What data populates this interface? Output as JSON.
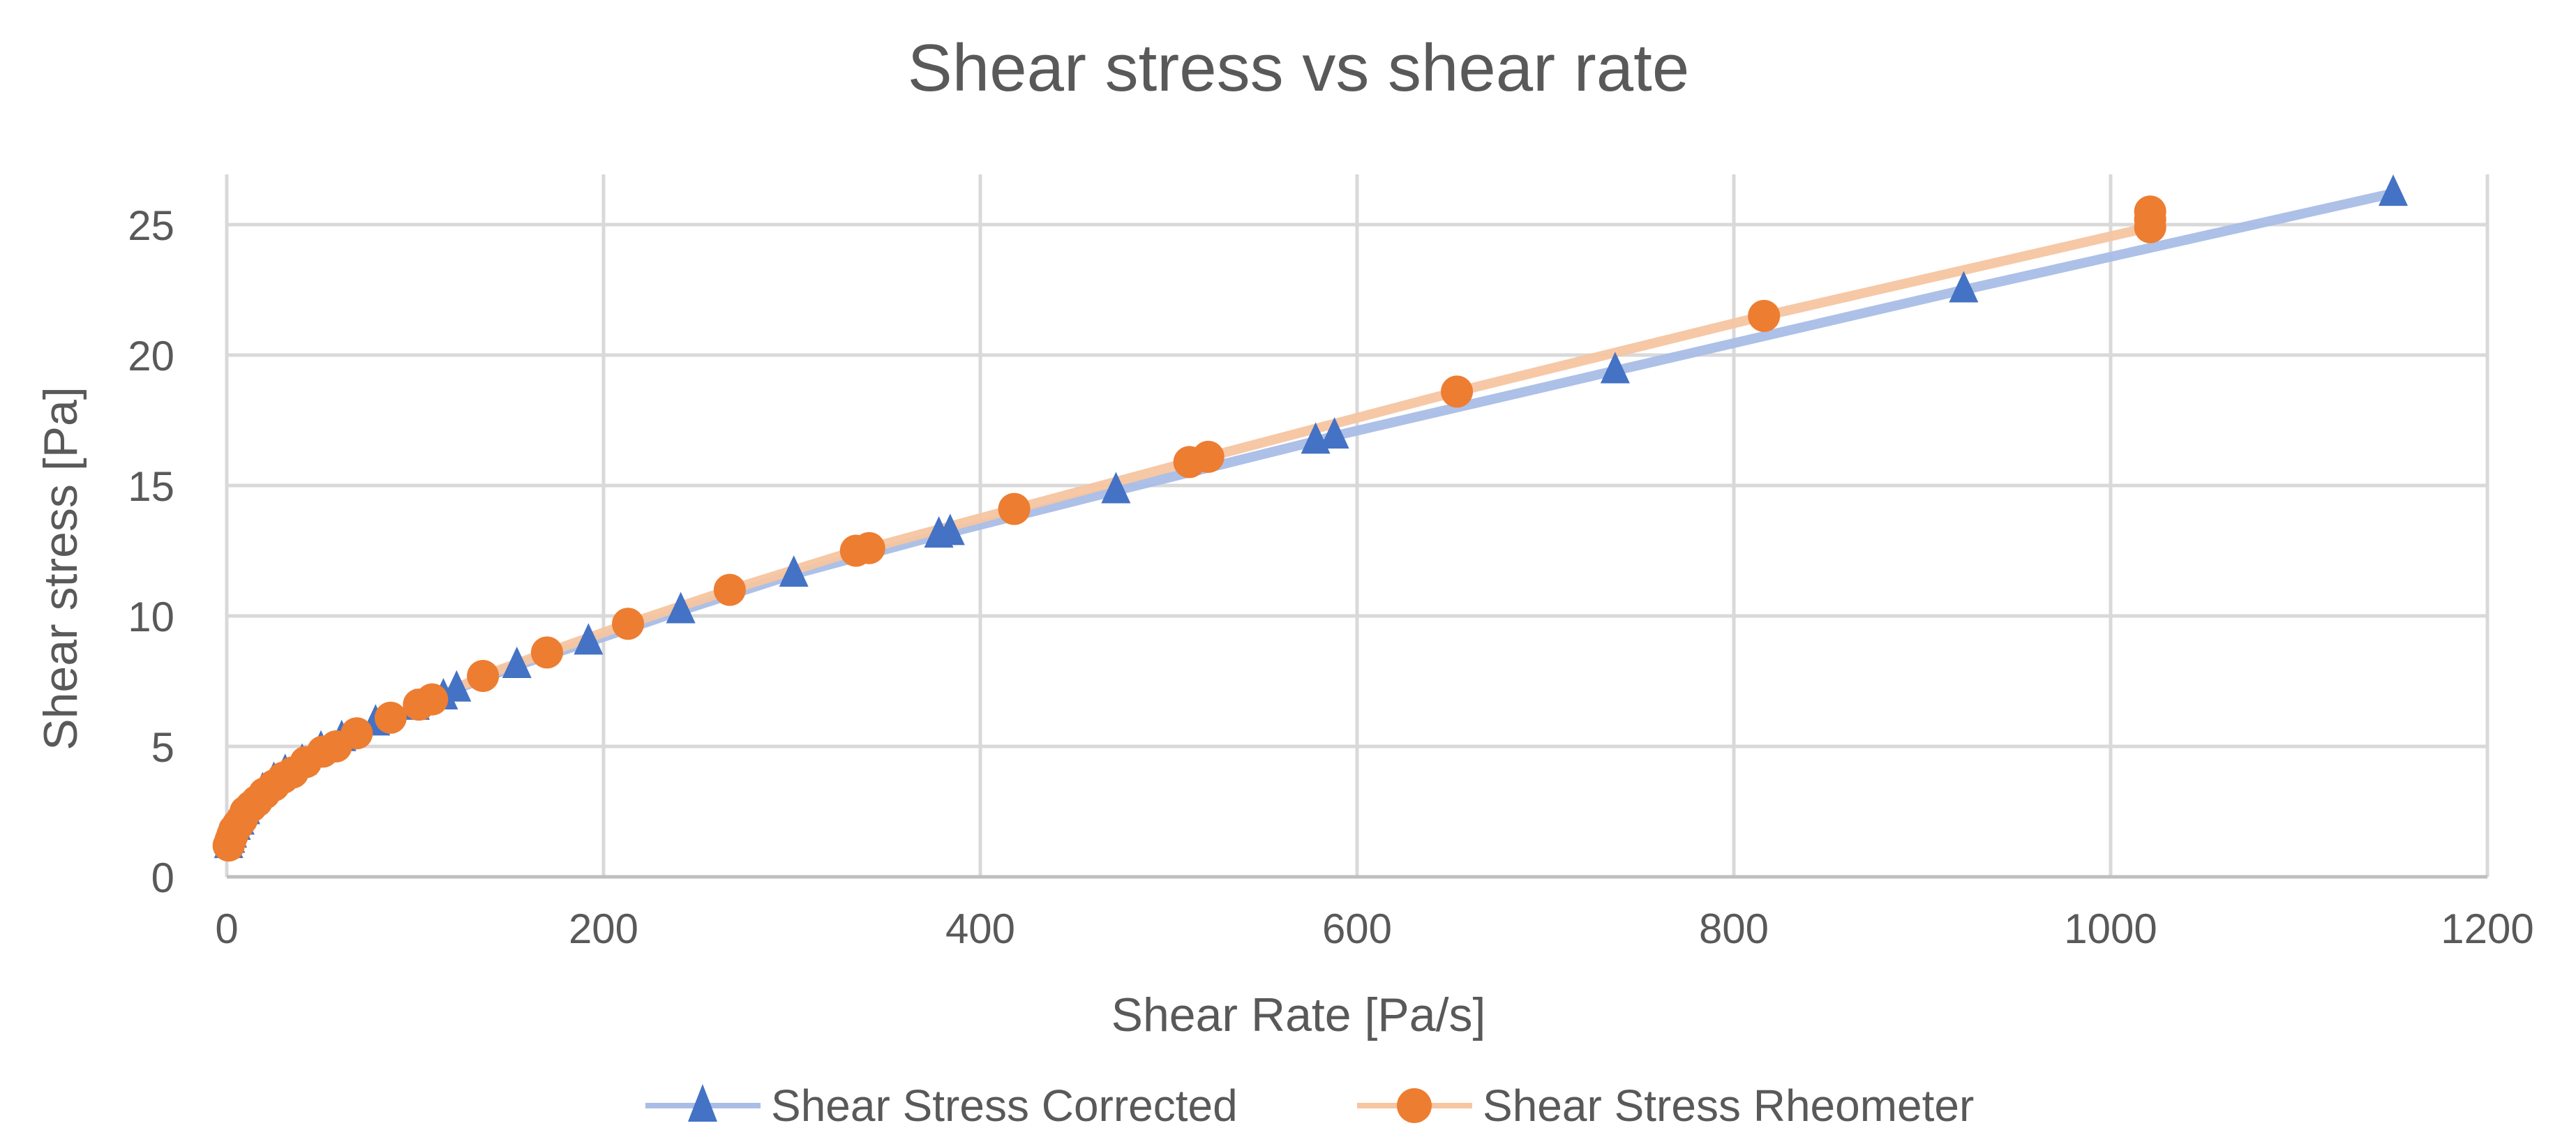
{
  "chart_data": {
    "type": "scatter",
    "title": "Shear stress vs shear rate",
    "xlabel": "Shear Rate [Pa/s]",
    "ylabel": "Shear stress [Pa]",
    "xlim": [
      0,
      1200
    ],
    "ylim": [
      0,
      27
    ],
    "x_ticks": [
      0,
      200,
      400,
      600,
      800,
      1000,
      1200
    ],
    "y_ticks": [
      0,
      5,
      10,
      15,
      20,
      25
    ],
    "x_tick_labels": [
      "0",
      "200",
      "400",
      "600",
      "800",
      "1000",
      "1200"
    ],
    "y_tick_labels": [
      "0",
      "5",
      "10",
      "15",
      "20",
      "25"
    ],
    "grid": true,
    "legend_position": "bottom",
    "series": [
      {
        "name": "Shear Stress Corrected",
        "marker": "triangle",
        "color": "#4472C4",
        "line_color": "#A9BDE6",
        "points": [
          [
            1,
            1.2
          ],
          [
            2,
            1.4
          ],
          [
            3,
            1.6
          ],
          [
            5,
            1.9
          ],
          [
            7,
            2.1
          ],
          [
            10,
            2.5
          ],
          [
            14,
            2.9
          ],
          [
            19,
            3.3
          ],
          [
            25,
            3.7
          ],
          [
            31,
            4.0
          ],
          [
            40,
            4.4
          ],
          [
            50,
            4.9
          ],
          [
            61,
            5.3
          ],
          [
            79,
            5.9
          ],
          [
            100,
            6.5
          ],
          [
            115,
            6.9
          ],
          [
            122,
            7.2
          ],
          [
            154,
            8.1
          ],
          [
            192,
            9.0
          ],
          [
            241,
            10.2
          ],
          [
            301,
            11.6
          ],
          [
            378,
            13.1
          ],
          [
            384,
            13.2
          ],
          [
            472,
            14.8
          ],
          [
            578,
            16.7
          ],
          [
            588,
            16.9
          ],
          [
            737,
            19.4
          ],
          [
            922,
            22.5
          ],
          [
            1150,
            26.2
          ]
        ]
      },
      {
        "name": "Shear Stress Rheometer",
        "marker": "circle",
        "color": "#ED7D31",
        "line_color": "#F6C5A1",
        "points": [
          [
            1,
            1.2
          ],
          [
            2,
            1.4
          ],
          [
            3,
            1.6
          ],
          [
            4,
            1.8
          ],
          [
            6,
            2.0
          ],
          [
            8,
            2.2
          ],
          [
            10,
            2.5
          ],
          [
            13,
            2.7
          ],
          [
            16,
            2.9
          ],
          [
            20,
            3.2
          ],
          [
            25,
            3.5
          ],
          [
            30,
            3.8
          ],
          [
            35,
            4.0
          ],
          [
            42,
            4.4
          ],
          [
            51,
            4.8
          ],
          [
            58,
            5.0
          ],
          [
            69,
            5.5
          ],
          [
            87,
            6.1
          ],
          [
            102,
            6.6
          ],
          [
            109,
            6.8
          ],
          [
            136,
            7.7
          ],
          [
            170,
            8.6
          ],
          [
            213,
            9.7
          ],
          [
            267,
            11.0
          ],
          [
            334,
            12.5
          ],
          [
            341,
            12.6
          ],
          [
            418,
            14.1
          ],
          [
            511,
            15.9
          ],
          [
            521,
            16.1
          ],
          [
            653,
            18.6
          ],
          [
            816,
            21.5
          ],
          [
            1021,
            24.9
          ],
          [
            1021,
            25.2
          ],
          [
            1021,
            25.5
          ]
        ]
      }
    ]
  }
}
